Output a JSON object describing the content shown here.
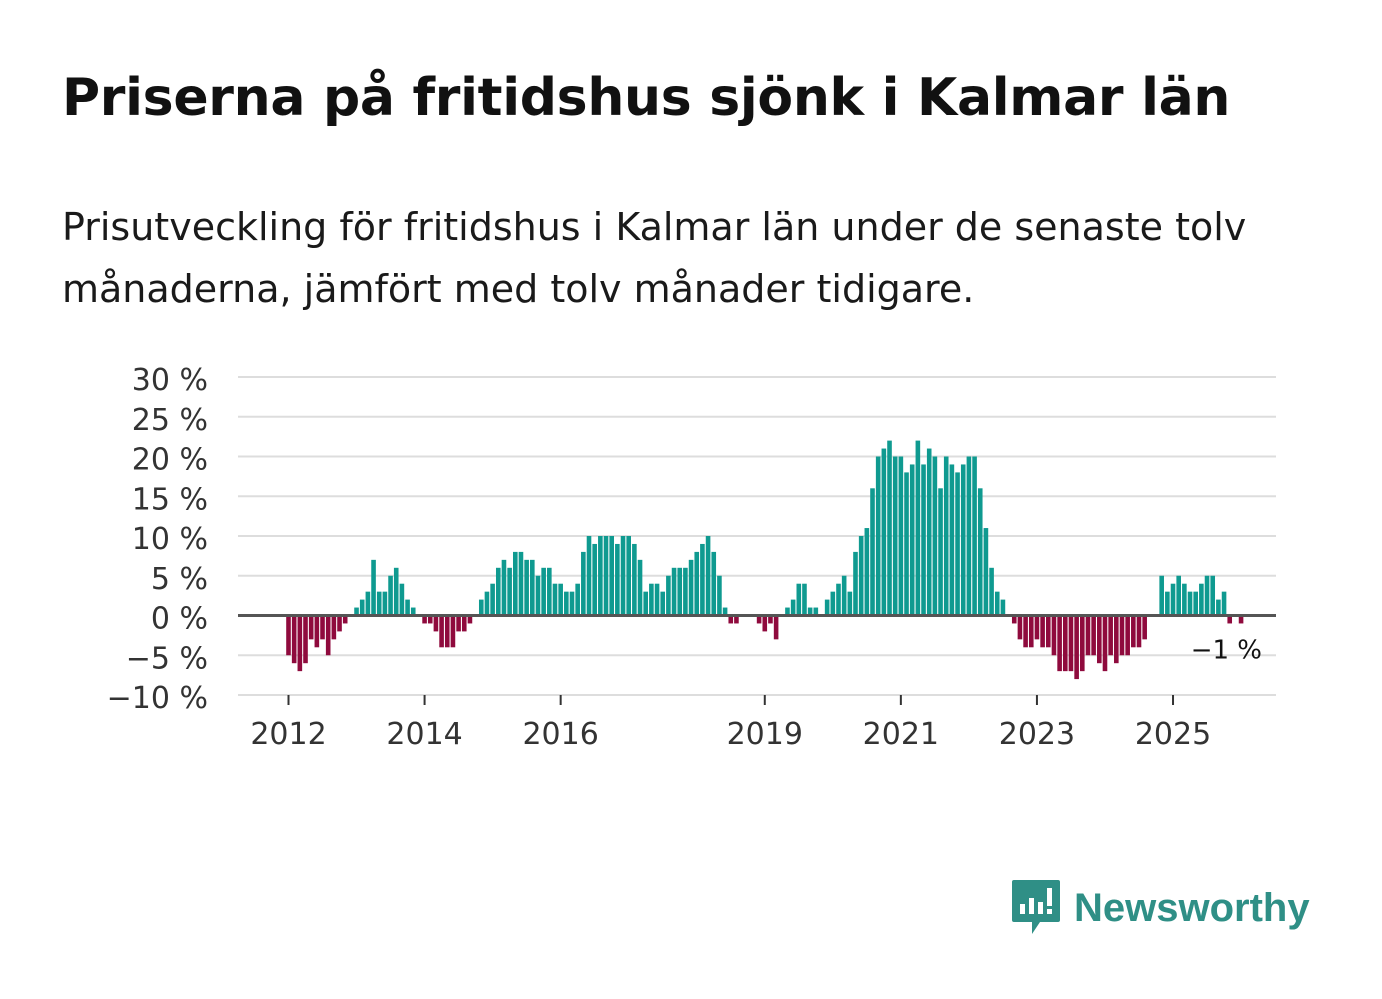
{
  "title": "Priserna på fritidshus sjönk i Kalmar län",
  "subtitle": "Prisutveckling för fritidshus i Kalmar län under de senaste tolv månaderna, jämfört med tolv månader tidigare.",
  "brand": {
    "name": "Newsworthy",
    "icon": "newsworthy-logo-icon"
  },
  "colors": {
    "positive": "#0f9a90",
    "negative": "#8f0a3d",
    "grid": "#dddddd",
    "zero": "#555555",
    "axis_text": "#333333"
  },
  "chart_data": {
    "type": "bar",
    "ylim": [
      -10,
      30
    ],
    "y_ticks": [
      30,
      25,
      20,
      15,
      10,
      5,
      0,
      -5,
      -10
    ],
    "y_tick_labels": [
      "30 %",
      "25 %",
      "20 %",
      "15 %",
      "10 %",
      "5 %",
      "0 %",
      "−5 %",
      "−10 %"
    ],
    "x_tick_labels": [
      {
        "label": "2012",
        "index": 0
      },
      {
        "label": "2014",
        "index": 24
      },
      {
        "label": "2016",
        "index": 48
      },
      {
        "label": "2019",
        "index": 84
      },
      {
        "label": "2021",
        "index": 108
      },
      {
        "label": "2023",
        "index": 132
      },
      {
        "label": "2025",
        "index": 156
      }
    ],
    "annotation": "−1 %",
    "x_start": "2012-01",
    "frequency": "monthly",
    "values": [
      -5,
      -6,
      -7,
      -6,
      -3,
      -4,
      -3,
      -5,
      -3,
      -2,
      -1,
      0,
      1,
      2,
      3,
      7,
      3,
      3,
      5,
      6,
      4,
      2,
      1,
      0,
      -1,
      -1,
      -2,
      -4,
      -4,
      -4,
      -2,
      -2,
      -1,
      0,
      2,
      3,
      4,
      6,
      7,
      6,
      8,
      8,
      7,
      7,
      5,
      6,
      6,
      4,
      4,
      3,
      3,
      4,
      8,
      10,
      9,
      10,
      10,
      10,
      9,
      10,
      10,
      9,
      7,
      3,
      4,
      4,
      3,
      5,
      6,
      6,
      6,
      7,
      8,
      9,
      10,
      8,
      5,
      1,
      -1,
      -1,
      0,
      0,
      0,
      -1,
      -2,
      -1,
      -3,
      0,
      1,
      2,
      4,
      4,
      1,
      1,
      0,
      2,
      3,
      4,
      5,
      3,
      8,
      10,
      11,
      16,
      20,
      21,
      22,
      20,
      20,
      18,
      19,
      22,
      19,
      21,
      20,
      16,
      20,
      19,
      18,
      19,
      20,
      20,
      16,
      11,
      6,
      3,
      2,
      0,
      -1,
      -3,
      -4,
      -4,
      -3,
      -4,
      -4,
      -5,
      -7,
      -7,
      -7,
      -8,
      -7,
      -5,
      -5,
      -6,
      -7,
      -5,
      -6,
      -5,
      -5,
      -4,
      -4,
      -3,
      0,
      0,
      5,
      3,
      4,
      5,
      4,
      3,
      3,
      4,
      5,
      5,
      2,
      3,
      -1,
      0,
      -1
    ]
  }
}
